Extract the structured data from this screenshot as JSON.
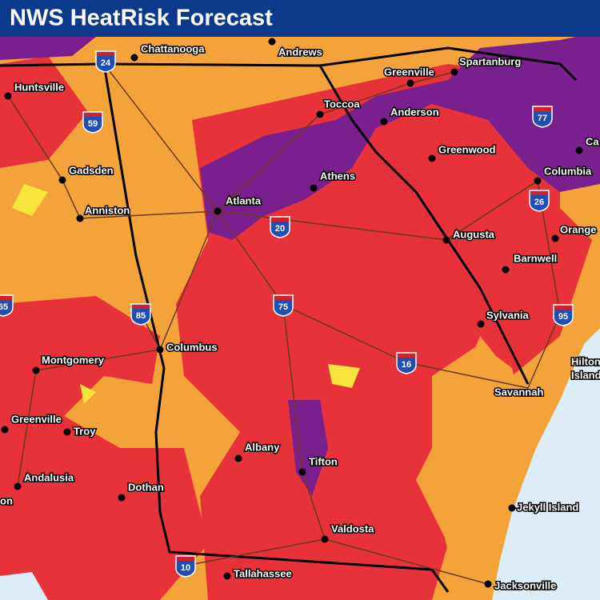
{
  "title": "NWS HeatRisk Forecast",
  "cities": [
    "Chattanooga",
    "Andrews",
    "Spartanburg",
    "Huntsville",
    "Greenville",
    "Toccoa",
    "Anderson",
    "Greenwood",
    "Columbia",
    "Ca",
    "Gadsden",
    "Athens",
    "Atlanta",
    "Anniston",
    "Orange",
    "Augusta",
    "Barnwell",
    "Sylvania",
    "Columbus",
    "Montgomery",
    "Hilton",
    "Island",
    "Savannah",
    "Greenville",
    "Troy",
    "Albany",
    "Tifton",
    "Andalusia",
    "Dothan",
    "on",
    "Jekyll Island",
    "Valdosta",
    "Tallahassee",
    "Jacksonville"
  ],
  "interstates": [
    "24",
    "59",
    "77",
    "26",
    "20",
    "85",
    "75",
    "95",
    "16",
    "10",
    "65"
  ]
}
